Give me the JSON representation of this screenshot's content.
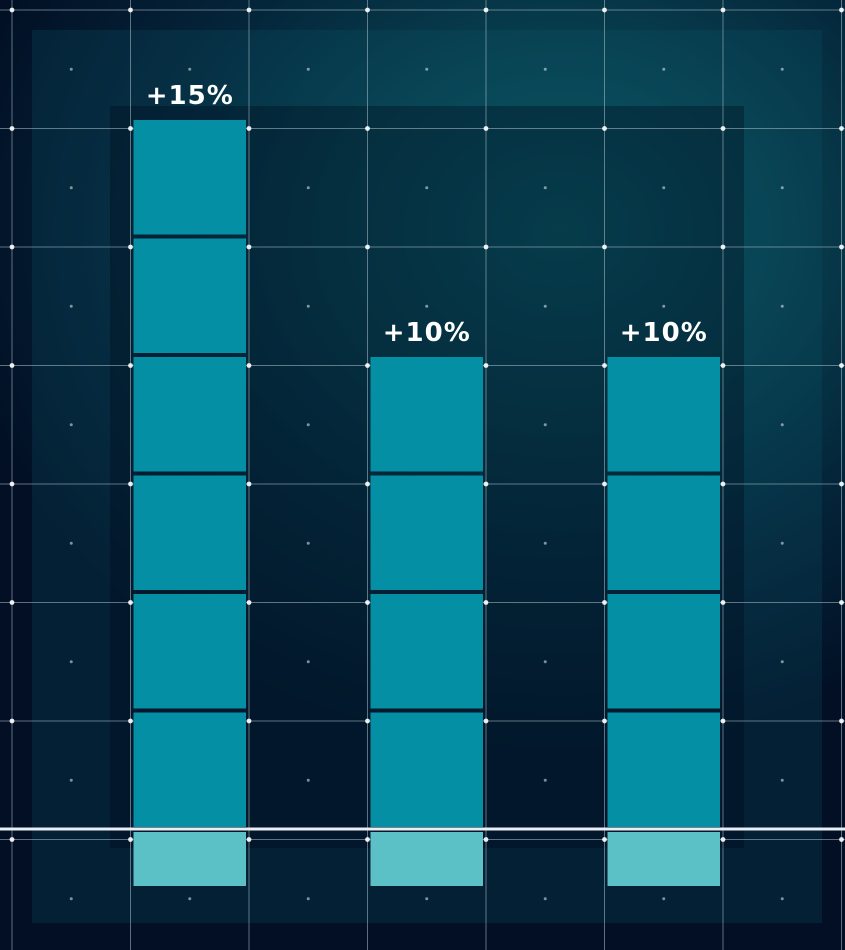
{
  "chart_data": {
    "type": "bar",
    "style": "stacked-block-columns",
    "categories": [
      "",
      "",
      ""
    ],
    "values": [
      15,
      10,
      10
    ],
    "unit": "%",
    "value_labels": [
      "+15%",
      "+10%",
      "+10%"
    ],
    "blocks_above_baseline": [
      6,
      4,
      4
    ],
    "blocks_below_baseline": [
      1,
      1,
      1
    ],
    "title": "",
    "xlabel": "",
    "ylabel": "",
    "grid": true,
    "legend": "none"
  },
  "colors": {
    "background": "#031a2c",
    "block": "#058fa4",
    "base_block": "#5cc1c6",
    "grid_line": "#a9bfc9",
    "baseline": "#e8eef2",
    "label": "#ffffff"
  }
}
